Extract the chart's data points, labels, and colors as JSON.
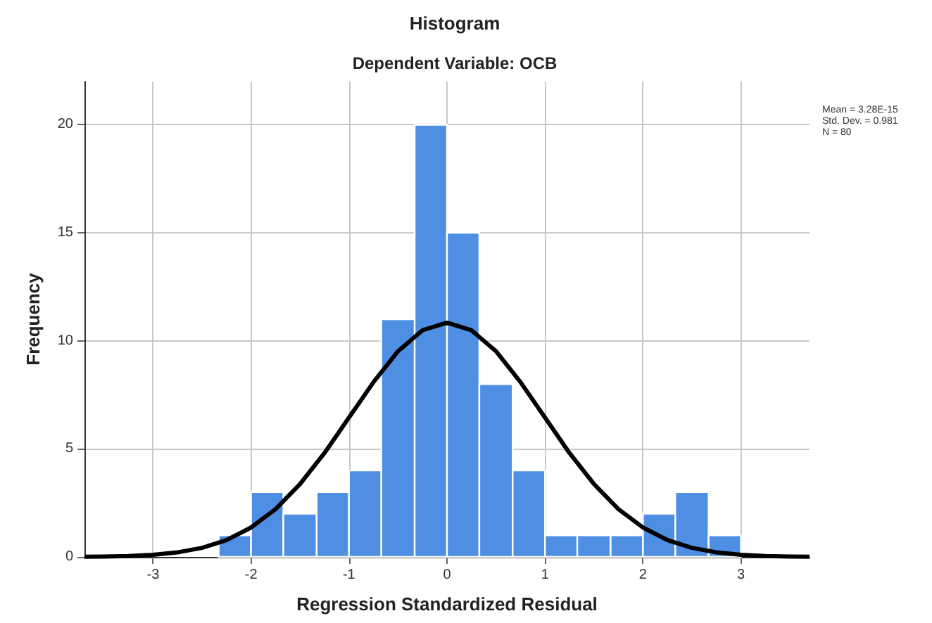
{
  "chart_data": {
    "type": "histogram",
    "title": "Histogram",
    "subtitle": "Dependent Variable: OCB",
    "xlabel": "Regression Standardized Residual",
    "ylabel": "Frequency",
    "annotations": [
      "Mean = 3.28E-15",
      "Std. Dev. = 0.981",
      "N = 80"
    ],
    "series": [
      {
        "color": "#4f8fe3",
        "bins": [
          -2.33,
          -2,
          -1.67,
          -1.33,
          -1,
          -0.67,
          -0.33,
          0,
          0.33,
          0.67,
          1,
          1.33,
          1.67,
          2,
          2.33,
          2.67,
          3
        ],
        "values": [
          1,
          3,
          2,
          3,
          4,
          11,
          20,
          15,
          8,
          4,
          1,
          1,
          1,
          2,
          3,
          1
        ]
      },
      {
        "type": "line",
        "color": "#000000",
        "x": [
          -3.7,
          -3.5,
          -3.25,
          -3,
          -2.75,
          -2.5,
          -2.25,
          -2,
          -1.75,
          -1.5,
          -1.25,
          -1,
          -0.75,
          -0.5,
          -0.25,
          0,
          0.25,
          0.5,
          0.75,
          1,
          1.25,
          1.5,
          1.75,
          2,
          2.25,
          2.5,
          2.75,
          3,
          3.25,
          3.5,
          3.7
        ],
        "values": [
          0.01,
          0.02,
          0.04,
          0.1,
          0.21,
          0.42,
          0.78,
          1.36,
          2.21,
          3.37,
          4.81,
          6.45,
          8.09,
          9.52,
          10.49,
          10.84,
          10.49,
          9.52,
          8.09,
          6.45,
          4.81,
          3.37,
          2.21,
          1.36,
          0.78,
          0.42,
          0.21,
          0.1,
          0.04,
          0.02,
          0.01
        ]
      }
    ],
    "xlim": [
      -3.7,
      3.7
    ],
    "xticks": [
      -3,
      -2,
      -1,
      0,
      1,
      2,
      3
    ],
    "ylim": [
      0,
      22
    ],
    "yticks": [
      0,
      5,
      10,
      15,
      20
    ],
    "grid": true
  }
}
